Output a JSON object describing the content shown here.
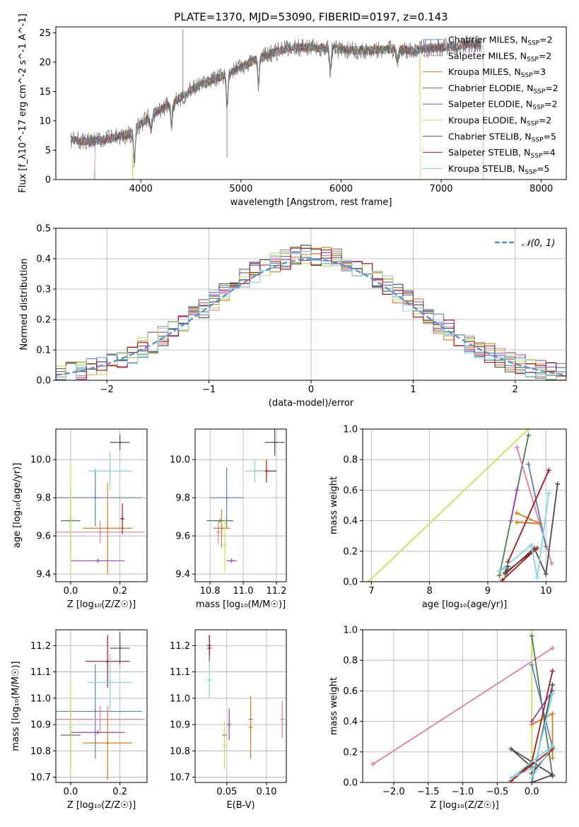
{
  "figure_title": "PLATE=1370, MJD=53090, FIBERID=0197, z=0.143",
  "models": [
    {
      "name": "Chabrier MILES",
      "nssp": "2",
      "color": "#5b7fc9"
    },
    {
      "name": "Salpeter MILES",
      "nssp": "2",
      "color": "#e87aa4"
    },
    {
      "name": "Kroupa MILES",
      "nssp": "3",
      "color": "#d97b1a"
    },
    {
      "name": "Chabrier ELODIE",
      "nssp": "2",
      "color": "#4e7d4e"
    },
    {
      "name": "Salpeter ELODIE",
      "nssp": "2",
      "color": "#9b3fbf"
    },
    {
      "name": "Kroupa ELODIE",
      "nssp": "2",
      "color": "#c8e050"
    },
    {
      "name": "Chabrier STELIB",
      "nssp": "5",
      "color": "#4d4d4d"
    },
    {
      "name": "Salpeter STELIB",
      "nssp": "4",
      "color": "#b01818"
    },
    {
      "name": "Kroupa STELIB",
      "nssp": "5",
      "color": "#7fd6dd"
    }
  ],
  "chart_data": [
    {
      "id": "spectrum",
      "type": "line",
      "xlabel": "wavelength [Angstrom, rest frame]",
      "ylabel": "Flux [f_λ10^-17 erg cm^-2 s^-1 A^-1]",
      "xlim": [
        3150,
        8250
      ],
      "ylim": [
        0,
        26
      ],
      "xticks": [
        4000,
        5000,
        6000,
        7000,
        8000
      ],
      "yticks": [
        0,
        5,
        10,
        15,
        20,
        25
      ],
      "legend": "upper right",
      "continuum": [
        [
          3300,
          6.8
        ],
        [
          3500,
          6.4
        ],
        [
          3700,
          7.0
        ],
        [
          3900,
          7.8
        ],
        [
          4000,
          9.5
        ],
        [
          4150,
          11.5
        ],
        [
          4300,
          12.8
        ],
        [
          4500,
          15.3
        ],
        [
          4700,
          16.8
        ],
        [
          4900,
          18.2
        ],
        [
          5100,
          20.0
        ],
        [
          5300,
          21.5
        ],
        [
          5500,
          22.5
        ],
        [
          5700,
          22.5
        ],
        [
          5900,
          22.3
        ],
        [
          6100,
          22.0
        ],
        [
          6300,
          22.0
        ],
        [
          6500,
          22.2
        ],
        [
          6700,
          22.0
        ],
        [
          6900,
          22.4
        ],
        [
          7100,
          22.6
        ],
        [
          7300,
          23.0
        ],
        [
          7400,
          23.0
        ]
      ],
      "dips": [
        [
          3935,
          5.5
        ],
        [
          4102,
          2.5
        ],
        [
          4305,
          4.0
        ],
        [
          4862,
          5.5
        ],
        [
          5175,
          4.5
        ],
        [
          5893,
          4.0
        ],
        [
          6563,
          2.5
        ]
      ],
      "spikes": [
        [
          4420,
          25.6
        ],
        [
          4860,
          3.8
        ]
      ],
      "model_cut": {
        "Salpeter MILES": [
          3540,
          7420
        ],
        "Kroupa ELODIE": [
          3920,
          6790
        ]
      }
    },
    {
      "id": "residual-histogram",
      "type": "histogram",
      "xlabel": "(data-model)/error",
      "ylabel": "Normed distribution",
      "xlim": [
        -2.5,
        2.5
      ],
      "ylim": [
        0,
        0.5
      ],
      "xticks": [
        -2,
        -1,
        0,
        1,
        2
      ],
      "yticks": [
        0.0,
        0.1,
        0.2,
        0.3,
        0.4,
        0.5
      ],
      "legend": "upper right",
      "reference_label": "𝒩(0, 1)",
      "bin_width": 0.1
    },
    {
      "id": "age-vs-metallicity",
      "type": "scatter",
      "xlabel": "Z [log₁₀(Z/Z☉)]",
      "ylabel": "age  [log₁₀(age/yr)]",
      "xlim": [
        -0.06,
        0.31
      ],
      "ylim": [
        9.36,
        10.16
      ],
      "xticks": [
        0.0,
        0.2
      ],
      "yticks": [
        9.4,
        9.6,
        9.8,
        10.0
      ],
      "points": [
        {
          "model": "Chabrier MILES",
          "x": 0.1,
          "y": 9.8,
          "xerr": 0.19,
          "yerr": 0.15
        },
        {
          "model": "Salpeter MILES",
          "x": 0.12,
          "y": 9.62,
          "xerr": 0.18,
          "yerr": 0.06
        },
        {
          "model": "Kroupa MILES",
          "x": 0.15,
          "y": 9.64,
          "xerr": 0.1,
          "yerr": 0.24
        },
        {
          "model": "Chabrier ELODIE",
          "x": 0.0,
          "y": 9.68,
          "xerr": 0.04,
          "yerr": 0.18
        },
        {
          "model": "Salpeter ELODIE",
          "x": 0.11,
          "y": 9.47,
          "xerr": 0.11,
          "yerr": 0.0
        },
        {
          "model": "Kroupa ELODIE",
          "x": 0.0,
          "y": 9.69,
          "xerr": 0.0,
          "yerr": 0.29
        },
        {
          "model": "Chabrier STELIB",
          "x": 0.2,
          "y": 10.09,
          "xerr": 0.04,
          "yerr": 0.04
        },
        {
          "model": "Salpeter STELIB",
          "x": 0.21,
          "y": 9.69,
          "xerr": 0.0,
          "yerr": 0.08
        },
        {
          "model": "Kroupa STELIB",
          "x": 0.16,
          "y": 9.94,
          "xerr": 0.09,
          "yerr": 0.1
        }
      ]
    },
    {
      "id": "age-vs-mass",
      "type": "scatter",
      "xlabel": "mass [log₁₀(M/M☉)]",
      "ylabel": "",
      "xlim": [
        10.71,
        11.26
      ],
      "ylim": [
        9.36,
        10.16
      ],
      "xticks": [
        10.8,
        11.0,
        11.2
      ],
      "yticks": [
        9.4,
        9.6,
        9.8,
        10.0
      ],
      "points": [
        {
          "model": "Chabrier MILES",
          "x": 10.9,
          "y": 9.8,
          "xerr": 0.1,
          "yerr": 0.16
        },
        {
          "model": "Salpeter MILES",
          "x": 10.85,
          "y": 9.62,
          "xerr": 0.0,
          "yerr": 0.06
        },
        {
          "model": "Kroupa MILES",
          "x": 10.87,
          "y": 9.64,
          "xerr": 0.05,
          "yerr": 0.1
        },
        {
          "model": "Chabrier ELODIE",
          "x": 10.86,
          "y": 9.68,
          "xerr": 0.08,
          "yerr": 0.0
        },
        {
          "model": "Salpeter ELODIE",
          "x": 10.93,
          "y": 9.47,
          "xerr": 0.03,
          "yerr": 0.0
        },
        {
          "model": "Kroupa ELODIE",
          "x": 10.89,
          "y": 9.55,
          "xerr": 0.0,
          "yerr": 0.14
        },
        {
          "model": "Chabrier STELIB",
          "x": 11.19,
          "y": 10.09,
          "xerr": 0.06,
          "yerr": 0.07
        },
        {
          "model": "Salpeter STELIB",
          "x": 11.14,
          "y": 9.94,
          "xerr": 0.06,
          "yerr": 0.06
        },
        {
          "model": "Kroupa STELIB",
          "x": 11.07,
          "y": 9.94,
          "xerr": 0.06,
          "yerr": 0.06
        }
      ]
    },
    {
      "id": "mass-weight-vs-age",
      "type": "line",
      "xlabel": "age  [log₁₀(age/yr)]",
      "ylabel": "mass weight",
      "xlim": [
        6.85,
        10.35
      ],
      "ylim": [
        0,
        1
      ],
      "xticks": [
        7,
        8,
        9,
        10
      ],
      "yticks": [
        0.0,
        0.2,
        0.4,
        0.6,
        0.8,
        1.0
      ],
      "series": [
        {
          "model": "Kroupa ELODIE",
          "points": [
            [
              6.95,
              0.0
            ],
            [
              9.7,
              1.0
            ]
          ]
        },
        {
          "model": "Chabrier ELODIE",
          "points": [
            [
              9.2,
              0.04
            ],
            [
              9.7,
              0.96
            ]
          ]
        },
        {
          "model": "Salpeter MILES",
          "points": [
            [
              9.5,
              0.88
            ],
            [
              10.1,
              0.12
            ]
          ]
        },
        {
          "model": "Chabrier MILES",
          "points": [
            [
              9.7,
              0.77
            ],
            [
              10.0,
              0.23
            ]
          ]
        },
        {
          "model": "Kroupa MILES",
          "points": [
            [
              9.5,
              0.45
            ],
            [
              9.9,
              0.38
            ],
            [
              9.5,
              0.39
            ]
          ]
        },
        {
          "model": "Salpeter ELODIE",
          "points": [
            [
              9.5,
              0.6
            ],
            [
              9.4,
              0.4
            ]
          ]
        },
        {
          "model": "Salpeter STELIB",
          "points": [
            [
              10.05,
              0.73
            ],
            [
              9.35,
              0.13
            ],
            [
              9.3,
              0.06
            ],
            [
              9.85,
              0.22
            ],
            [
              9.25,
              0.01
            ]
          ]
        },
        {
          "model": "Chabrier STELIB",
          "points": [
            [
              10.2,
              0.64
            ],
            [
              10.0,
              0.05
            ],
            [
              9.8,
              0.22
            ],
            [
              9.3,
              0.05
            ],
            [
              9.35,
              0.1
            ]
          ]
        },
        {
          "model": "Kroupa STELIB",
          "points": [
            [
              10.05,
              0.58
            ],
            [
              9.85,
              0.03
            ],
            [
              9.75,
              0.24
            ],
            [
              9.2,
              0.07
            ],
            [
              9.3,
              0.09
            ]
          ]
        }
      ]
    },
    {
      "id": "mass-vs-metallicity",
      "type": "scatter",
      "xlabel": "Z [log₁₀(Z/Z☉)]",
      "ylabel": "mass [log₁₀(M/M☉)]",
      "xlim": [
        -0.06,
        0.31
      ],
      "ylim": [
        10.68,
        11.26
      ],
      "xticks": [
        0.0,
        0.2
      ],
      "yticks": [
        10.7,
        10.8,
        10.9,
        11.0,
        11.1,
        11.2
      ],
      "points": [
        {
          "model": "Chabrier MILES",
          "x": 0.1,
          "y": 10.95,
          "xerr": 0.19,
          "yerr": 0.18
        },
        {
          "model": "Salpeter MILES",
          "x": 0.12,
          "y": 10.92,
          "xerr": 0.18,
          "yerr": 0.05
        },
        {
          "model": "Kroupa MILES",
          "x": 0.15,
          "y": 10.83,
          "xerr": 0.1,
          "yerr": 0.14
        },
        {
          "model": "Chabrier ELODIE",
          "x": 0.0,
          "y": 10.86,
          "xerr": 0.04,
          "yerr": 0.12
        },
        {
          "model": "Salpeter ELODIE",
          "x": 0.11,
          "y": 10.87,
          "xerr": 0.11,
          "yerr": 0.0
        },
        {
          "model": "Kroupa ELODIE",
          "x": 0.0,
          "y": 10.89,
          "xerr": 0.0,
          "yerr": 0.17
        },
        {
          "model": "Chabrier STELIB",
          "x": 0.2,
          "y": 11.19,
          "xerr": 0.04,
          "yerr": 0.06
        },
        {
          "model": "Salpeter STELIB",
          "x": 0.15,
          "y": 11.14,
          "xerr": 0.09,
          "yerr": 0.1
        },
        {
          "model": "Kroupa STELIB",
          "x": 0.16,
          "y": 11.06,
          "xerr": 0.09,
          "yerr": 0.11
        }
      ]
    },
    {
      "id": "mass-vs-extinction",
      "type": "scatter",
      "xlabel": "E(B-V)",
      "ylabel": "",
      "xlim": [
        0.01,
        0.125
      ],
      "ylim": [
        10.68,
        11.26
      ],
      "xticks": [
        0.05,
        0.1
      ],
      "yticks": [
        10.7,
        10.8,
        10.9,
        11.0,
        11.1,
        11.2
      ],
      "points": [
        {
          "model": "Chabrier MILES",
          "x": 0.08,
          "y": 10.92,
          "xerr": 0.0,
          "yerr": 0.0
        },
        {
          "model": "Salpeter MILES",
          "x": 0.12,
          "y": 10.92,
          "xerr": 0.0,
          "yerr": 0.07
        },
        {
          "model": "Kroupa MILES",
          "x": 0.08,
          "y": 10.89,
          "xerr": 0.0,
          "yerr": 0.12
        },
        {
          "model": "Chabrier ELODIE",
          "x": 0.047,
          "y": 10.86,
          "xerr": 0.0,
          "yerr": 0.0
        },
        {
          "model": "Salpeter ELODIE",
          "x": 0.053,
          "y": 10.9,
          "xerr": 0.0,
          "yerr": 0.06
        },
        {
          "model": "Kroupa ELODIE",
          "x": 0.047,
          "y": 10.82,
          "xerr": 0.0,
          "yerr": 0.09
        },
        {
          "model": "Chabrier STELIB",
          "x": 0.028,
          "y": 11.19,
          "xerr": 0.0,
          "yerr": 0.05
        },
        {
          "model": "Salpeter STELIB",
          "x": 0.028,
          "y": 11.2,
          "xerr": 0.0,
          "yerr": 0.04
        },
        {
          "model": "Kroupa STELIB",
          "x": 0.028,
          "y": 11.07,
          "xerr": 0.0,
          "yerr": 0.07
        }
      ]
    },
    {
      "id": "mass-weight-vs-metallicity",
      "type": "line",
      "xlabel": "Z [log₁₀(Z/Z☉)]",
      "ylabel": "mass weight",
      "xlim": [
        -2.45,
        0.5
      ],
      "ylim": [
        0,
        1
      ],
      "xticks": [
        -2.0,
        -1.5,
        -1.0,
        -0.5,
        0.0
      ],
      "yticks": [
        0.0,
        0.2,
        0.4,
        0.6,
        0.8,
        1.0
      ],
      "series": [
        {
          "model": "Salpeter MILES",
          "points": [
            [
              -2.3,
              0.12
            ],
            [
              0.3,
              0.88
            ]
          ]
        },
        {
          "model": "Kroupa ELODIE",
          "points": [
            [
              0.0,
              1.0
            ],
            [
              0.0,
              0.0
            ]
          ]
        },
        {
          "model": "Chabrier ELODIE",
          "points": [
            [
              0.0,
              0.96
            ],
            [
              0.3,
              0.04
            ]
          ]
        },
        {
          "model": "Chabrier MILES",
          "points": [
            [
              0.0,
              0.77
            ],
            [
              0.3,
              0.23
            ]
          ]
        },
        {
          "model": "Kroupa MILES",
          "points": [
            [
              0.0,
              0.38
            ],
            [
              0.3,
              0.45
            ],
            [
              0.3,
              0.16
            ]
          ]
        },
        {
          "model": "Salpeter ELODIE",
          "points": [
            [
              0.0,
              0.4
            ],
            [
              0.3,
              0.6
            ]
          ]
        },
        {
          "model": "Salpeter STELIB",
          "points": [
            [
              0.3,
              0.73
            ],
            [
              0.0,
              0.13
            ],
            [
              -0.3,
              0.01
            ],
            [
              0.3,
              0.22
            ],
            [
              0.0,
              0.06
            ]
          ]
        },
        {
          "model": "Chabrier STELIB",
          "points": [
            [
              0.3,
              0.64
            ],
            [
              0.0,
              0.0
            ],
            [
              0.3,
              0.05
            ],
            [
              -0.3,
              0.22
            ],
            [
              0.0,
              0.1
            ]
          ]
        },
        {
          "model": "Kroupa STELIB",
          "points": [
            [
              0.3,
              0.58
            ],
            [
              0.0,
              0.03
            ],
            [
              0.3,
              0.24
            ],
            [
              -0.3,
              0.03
            ],
            [
              0.0,
              0.09
            ]
          ]
        }
      ]
    }
  ]
}
